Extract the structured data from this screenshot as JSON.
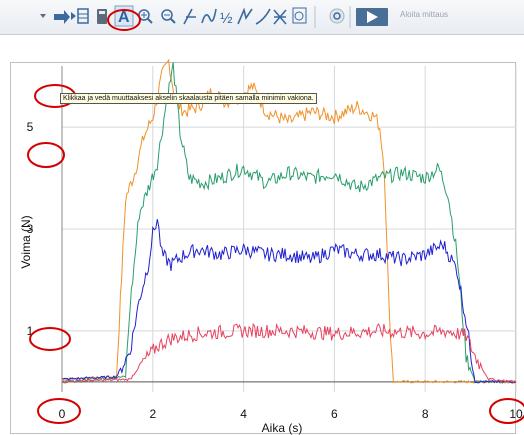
{
  "toolbar": {
    "icons": [
      "dropdown-arrow-icon",
      "step-forward-icon",
      "data-table-icon",
      "calculator-icon",
      "autoscale-icon",
      "zoom-in-icon",
      "zoom-out-icon",
      "examine-icon",
      "tangent-icon",
      "integral-icon",
      "statistics-icon",
      "curve-fit-icon",
      "model-icon",
      "timing-icon",
      "replay-icon",
      "play-icon"
    ],
    "autoscale_label": "A",
    "fraction_label": "½",
    "start_label": "Aloita mittaus",
    "accent": "#3c6fa6",
    "annotation_color": "#d40000"
  },
  "tooltip": "Klikkaa ja vedä muuttaaksesi akselin skaalausta pitäen samalla minimin vakiona.",
  "chart_data": {
    "type": "line",
    "xlabel": "Aika (s)",
    "ylabel": "Voima (N)",
    "xlim": [
      0,
      10
    ],
    "ylim": [
      -0.2,
      6.2
    ],
    "xticks": [
      0,
      2,
      4,
      6,
      8,
      10
    ],
    "yticks": [
      1,
      3,
      5
    ],
    "grid": true,
    "series": [
      {
        "color": "#f0922b",
        "x": [
          0,
          1.2,
          1.4,
          1.6,
          1.8,
          2.0,
          2.2,
          2.35,
          2.5,
          2.7,
          3.0,
          3.3,
          3.6,
          3.9,
          4.2,
          4.5,
          5.0,
          5.5,
          6.0,
          6.5,
          6.9,
          7.0,
          7.1,
          7.2,
          7.3,
          10
        ],
        "y": [
          0.05,
          0.1,
          3.6,
          4.1,
          4.8,
          5.2,
          6.0,
          6.3,
          5.5,
          5.3,
          5.4,
          5.7,
          5.5,
          5.6,
          5.8,
          5.3,
          5.1,
          5.3,
          5.2,
          5.4,
          5.2,
          5.0,
          4.2,
          1.5,
          0.0,
          0.0
        ]
      },
      {
        "color": "#2a9d6c",
        "x": [
          0,
          1.4,
          1.5,
          1.7,
          1.9,
          2.1,
          2.3,
          2.45,
          2.6,
          2.8,
          3.1,
          3.5,
          4.0,
          4.5,
          5.0,
          5.5,
          6.0,
          6.5,
          7.0,
          7.5,
          8.0,
          8.3,
          8.5,
          8.7,
          8.9,
          9.1,
          10
        ],
        "y": [
          0.0,
          0.1,
          1.5,
          3.3,
          3.8,
          4.3,
          5.5,
          6.2,
          4.9,
          4.0,
          3.9,
          4.0,
          4.2,
          3.9,
          4.1,
          4.0,
          4.1,
          3.8,
          4.0,
          4.1,
          4.0,
          4.2,
          3.7,
          2.5,
          0.5,
          0.0,
          0.0
        ]
      },
      {
        "color": "#2020d0",
        "x": [
          0,
          1.2,
          1.5,
          1.7,
          1.9,
          2.0,
          2.1,
          2.2,
          2.4,
          2.7,
          3.0,
          3.5,
          4.0,
          4.5,
          5.0,
          5.5,
          6.0,
          6.5,
          7.0,
          7.5,
          8.0,
          8.4,
          8.7,
          8.9,
          9.1,
          10
        ],
        "y": [
          0.05,
          0.1,
          0.6,
          1.6,
          2.3,
          2.9,
          3.2,
          2.5,
          2.3,
          2.5,
          2.6,
          2.5,
          2.6,
          2.5,
          2.5,
          2.4,
          2.6,
          2.5,
          2.5,
          2.4,
          2.5,
          2.7,
          2.2,
          1.2,
          0.0,
          0.0
        ]
      },
      {
        "color": "#e8435e",
        "x": [
          0,
          1.5,
          1.7,
          1.9,
          2.1,
          2.4,
          3.0,
          4.0,
          5.0,
          6.0,
          7.0,
          8.0,
          8.5,
          8.9,
          9.1,
          9.4,
          10
        ],
        "y": [
          0.0,
          0.05,
          0.3,
          0.5,
          0.7,
          0.85,
          0.95,
          1.0,
          1.0,
          0.95,
          1.0,
          0.95,
          1.0,
          0.9,
          0.5,
          0.05,
          0.0
        ]
      }
    ]
  }
}
